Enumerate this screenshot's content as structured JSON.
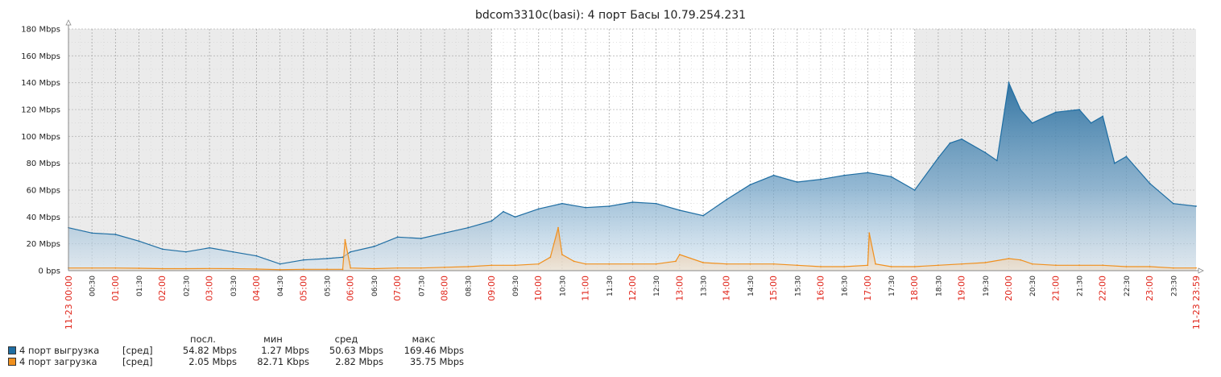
{
  "chart_data": {
    "type": "area",
    "title": "bdcom3310c(basi): 4 порт Басы 10.79.254.231",
    "y_ticks": [
      "0 bps",
      "20 Mbps",
      "40 Mbps",
      "60 Mbps",
      "80 Mbps",
      "100 Mbps",
      "120 Mbps",
      "140 Mbps",
      "160 Mbps",
      "180 Mbps"
    ],
    "ylim": [
      0,
      180
    ],
    "y_unit": "Mbps",
    "xlim": [
      "00:00",
      "23:59"
    ],
    "x_ticks": [
      {
        "t": "00:00",
        "major": true
      },
      {
        "t": "00:30",
        "major": false
      },
      {
        "t": "01:00",
        "major": true
      },
      {
        "t": "01:30",
        "major": false
      },
      {
        "t": "02:00",
        "major": true
      },
      {
        "t": "02:30",
        "major": false
      },
      {
        "t": "03:00",
        "major": true
      },
      {
        "t": "03:30",
        "major": false
      },
      {
        "t": "04:00",
        "major": true
      },
      {
        "t": "04:30",
        "major": false
      },
      {
        "t": "05:00",
        "major": true
      },
      {
        "t": "05:30",
        "major": false
      },
      {
        "t": "06:00",
        "major": true
      },
      {
        "t": "06:30",
        "major": false
      },
      {
        "t": "07:00",
        "major": true
      },
      {
        "t": "07:30",
        "major": false
      },
      {
        "t": "08:00",
        "major": true
      },
      {
        "t": "08:30",
        "major": false
      },
      {
        "t": "09:00",
        "major": true
      },
      {
        "t": "09:30",
        "major": false
      },
      {
        "t": "10:00",
        "major": true
      },
      {
        "t": "10:30",
        "major": false
      },
      {
        "t": "11:00",
        "major": true
      },
      {
        "t": "11:30",
        "major": false
      },
      {
        "t": "12:00",
        "major": true
      },
      {
        "t": "12:30",
        "major": false
      },
      {
        "t": "13:00",
        "major": true
      },
      {
        "t": "13:30",
        "major": false
      },
      {
        "t": "14:00",
        "major": true
      },
      {
        "t": "14:30",
        "major": false
      },
      {
        "t": "15:00",
        "major": true
      },
      {
        "t": "15:30",
        "major": false
      },
      {
        "t": "16:00",
        "major": true
      },
      {
        "t": "16:30",
        "major": false
      },
      {
        "t": "17:00",
        "major": true
      },
      {
        "t": "17:30",
        "major": false
      },
      {
        "t": "18:00",
        "major": true
      },
      {
        "t": "18:30",
        "major": false
      },
      {
        "t": "19:00",
        "major": true
      },
      {
        "t": "19:30",
        "major": false
      },
      {
        "t": "20:00",
        "major": true
      },
      {
        "t": "20:30",
        "major": false
      },
      {
        "t": "21:00",
        "major": true
      },
      {
        "t": "21:30",
        "major": false
      },
      {
        "t": "22:00",
        "major": true
      },
      {
        "t": "22:30",
        "major": false
      },
      {
        "t": "23:00",
        "major": true
      },
      {
        "t": "23:30",
        "major": false
      }
    ],
    "date_start": "11-23 00:00",
    "date_end": "11-23 23:59",
    "shaded_periods": [
      [
        "00:00",
        "09:00"
      ],
      [
        "18:00",
        "23:59"
      ]
    ],
    "grid": true,
    "legend_position": "bottom-left",
    "series": [
      {
        "name": "4 порт выгрузка",
        "color": "#1f6ea3",
        "x": [
          "00:00",
          "00:30",
          "01:00",
          "01:30",
          "02:00",
          "02:30",
          "03:00",
          "03:30",
          "04:00",
          "04:30",
          "05:00",
          "05:30",
          "05:50",
          "06:00",
          "06:30",
          "07:00",
          "07:30",
          "08:00",
          "08:30",
          "09:00",
          "09:15",
          "09:30",
          "10:00",
          "10:30",
          "11:00",
          "11:30",
          "12:00",
          "12:30",
          "13:00",
          "13:30",
          "14:00",
          "14:30",
          "15:00",
          "15:30",
          "16:00",
          "16:30",
          "17:00",
          "17:30",
          "18:00",
          "18:30",
          "18:45",
          "19:00",
          "19:30",
          "19:45",
          "20:00",
          "20:15",
          "20:30",
          "21:00",
          "21:30",
          "21:45",
          "22:00",
          "22:15",
          "22:30",
          "23:00",
          "23:30",
          "23:59"
        ],
        "y": [
          32,
          28,
          27,
          22,
          16,
          14,
          17,
          14,
          11,
          5,
          8,
          9,
          10,
          14,
          18,
          25,
          24,
          28,
          32,
          37,
          44,
          40,
          46,
          50,
          47,
          48,
          51,
          50,
          45,
          41,
          53,
          64,
          71,
          66,
          68,
          71,
          73,
          70,
          60,
          84,
          95,
          98,
          88,
          82,
          140,
          120,
          110,
          118,
          120,
          110,
          115,
          80,
          85,
          65,
          50,
          48
        ]
      },
      {
        "name": "4 порт загрузка",
        "color": "#f0901e",
        "x": [
          "00:00",
          "00:30",
          "01:00",
          "01:30",
          "02:00",
          "02:30",
          "03:00",
          "03:30",
          "04:00",
          "04:30",
          "05:00",
          "05:30",
          "05:50",
          "05:53",
          "06:00",
          "06:30",
          "07:00",
          "07:30",
          "08:00",
          "08:30",
          "09:00",
          "09:30",
          "10:00",
          "10:15",
          "10:25",
          "10:30",
          "10:45",
          "11:00",
          "11:30",
          "12:00",
          "12:30",
          "12:55",
          "13:00",
          "13:30",
          "14:00",
          "14:30",
          "15:00",
          "15:30",
          "16:00",
          "16:30",
          "17:00",
          "17:02",
          "17:10",
          "17:30",
          "18:00",
          "18:30",
          "19:00",
          "19:30",
          "20:00",
          "20:15",
          "20:30",
          "21:00",
          "21:30",
          "22:00",
          "22:30",
          "23:00",
          "23:30",
          "23:59"
        ],
        "y": [
          2,
          2,
          2,
          1.8,
          1.5,
          1.5,
          1.6,
          1.5,
          1.2,
          0.8,
          1,
          1,
          1,
          23,
          2,
          1.5,
          2,
          2,
          2.5,
          3,
          4,
          4,
          5,
          10,
          32,
          12,
          7,
          5,
          5,
          5,
          5,
          7,
          12,
          6,
          5,
          5,
          5,
          4,
          3,
          3,
          4,
          28,
          5,
          3,
          3,
          4,
          5,
          6,
          9,
          8,
          5,
          4,
          4,
          4,
          3,
          3,
          2,
          2
        ]
      }
    ],
    "legend_rows": [
      {
        "name": "4 порт выгрузка",
        "agg": "[сред]",
        "last": "54.82 Mbps",
        "min": "1.27 Mbps",
        "avg": "50.63 Mbps",
        "max": "169.46 Mbps"
      },
      {
        "name": "4 порт загрузка",
        "agg": "[сред]",
        "last": "2.05 Mbps",
        "min": "82.71 Kbps",
        "avg": "2.82 Mbps",
        "max": "35.75 Mbps"
      }
    ],
    "legend_headers": {
      "last": "посл.",
      "min": "мин",
      "avg": "сред",
      "max": "макс"
    }
  }
}
